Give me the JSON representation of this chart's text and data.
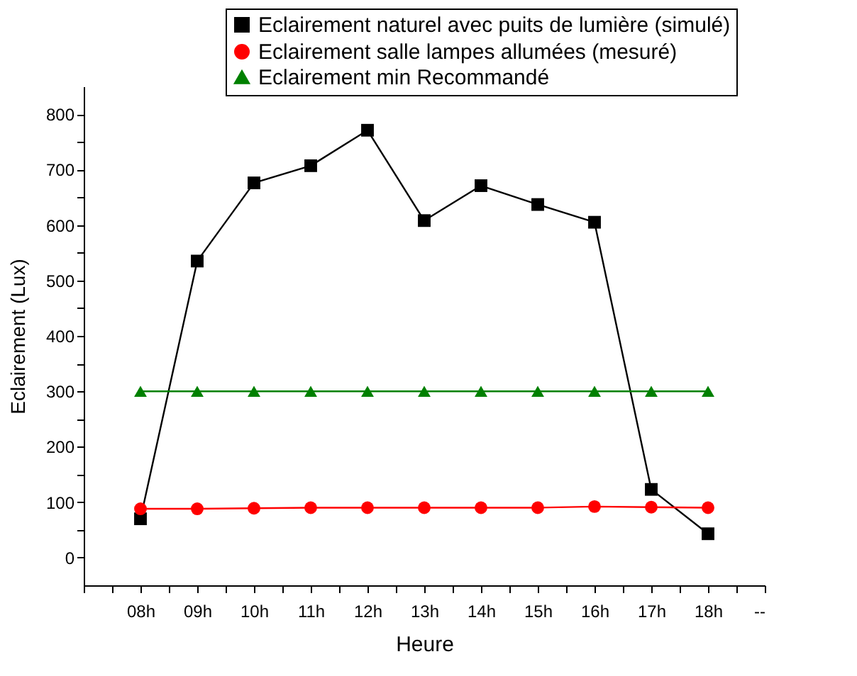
{
  "chart_data": {
    "type": "line",
    "xlabel": "Heure",
    "ylabel": "Eclairement (Lux)",
    "categories": [
      null,
      "08h",
      "09h",
      "10h",
      "11h",
      "12h",
      "13h",
      "14h",
      "15h",
      "16h",
      "17h",
      "18h",
      "--"
    ],
    "ylim": [
      -50,
      850
    ],
    "yticks": [
      0,
      100,
      200,
      300,
      400,
      500,
      600,
      700,
      800
    ],
    "grid": false,
    "legend": "top right",
    "series": [
      {
        "name": "Eclairement naturel avec puits de lumière (simulé)",
        "color": "#000000",
        "marker": "square",
        "values": [
          null,
          70,
          535,
          676,
          707,
          771,
          608,
          671,
          637,
          605,
          123,
          43,
          null
        ]
      },
      {
        "name": "Eclairement salle lampes allumées (mesuré)",
        "color": "#ff0000",
        "marker": "circle",
        "values": [
          null,
          88,
          88,
          89,
          90,
          90,
          90,
          90,
          90,
          92,
          91,
          90,
          null
        ]
      },
      {
        "name": "Eclairement min Recommandé",
        "color": "#008000",
        "marker": "triangle",
        "values": [
          null,
          300,
          300,
          300,
          300,
          300,
          300,
          300,
          300,
          300,
          300,
          300,
          null
        ]
      }
    ]
  }
}
